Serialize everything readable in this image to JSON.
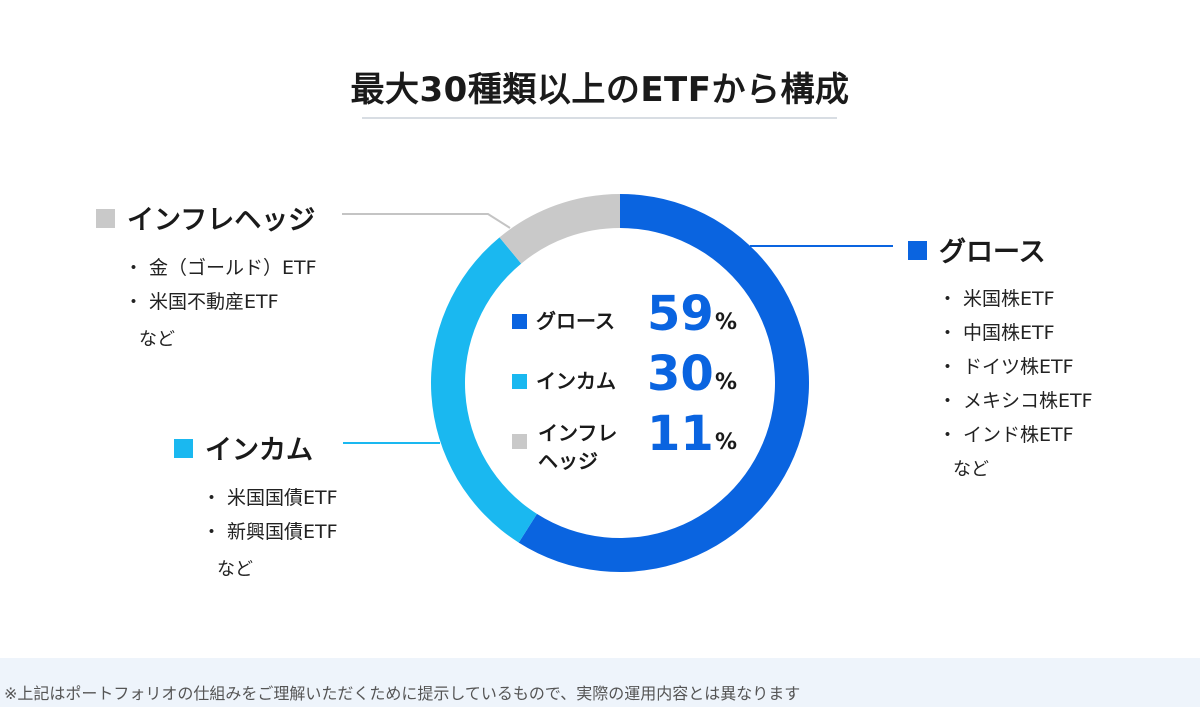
{
  "title": "最大30種類以上のETFから構成",
  "chart_data": {
    "type": "pie",
    "variant": "donut",
    "slices": [
      {
        "name": "グロース",
        "value": 59,
        "color": "#0a64e0",
        "items": [
          "米国株ETF",
          "中国株ETF",
          "ドイツ株ETF",
          "メキシコ株ETF",
          "インド株ETF"
        ],
        "note": "など"
      },
      {
        "name": "インカム",
        "value": 30,
        "color": "#1ab8f0",
        "items": [
          "米国国債ETF",
          "新興国債ETF"
        ],
        "note": "など"
      },
      {
        "name": "インフレヘッジ",
        "value": 11,
        "color": "#c9c9c9",
        "items": [
          "金（ゴールド）ETF",
          "米国不動産ETF"
        ],
        "note": "など"
      }
    ],
    "center_legend": [
      {
        "label_lines": [
          "グロース"
        ],
        "value": "59",
        "unit": "%"
      },
      {
        "label_lines": [
          "インカム"
        ],
        "value": "30",
        "unit": "%"
      },
      {
        "label_lines": [
          "インフレ",
          "ヘッジ"
        ],
        "value": "11",
        "unit": "%"
      }
    ]
  },
  "bullet": "・",
  "footer": "※上記はポートフォリオの仕組みをご理解いただくために提示しているもので、実際の運用内容とは異なります"
}
